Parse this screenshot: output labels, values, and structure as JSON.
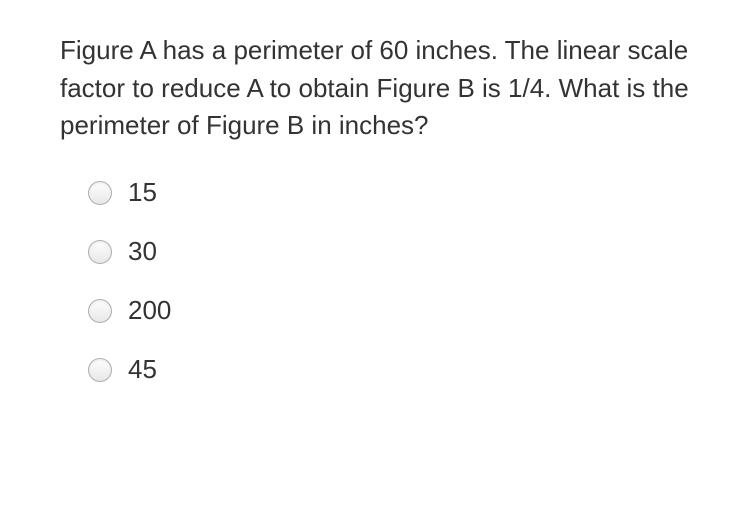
{
  "question_text": "Figure A has a perimeter of 60 inches. The linear scale factor to reduce A to obtain Figure B is 1/4. What is the perimeter of Figure B in inches?",
  "options": [
    {
      "label": "15"
    },
    {
      "label": "30"
    },
    {
      "label": "200"
    },
    {
      "label": "45"
    }
  ],
  "colors": {
    "text": "#333333",
    "radio_border": "#b0b0b0",
    "background": "#ffffff"
  },
  "typography": {
    "font_family": "Arial, Helvetica, sans-serif",
    "question_fontsize": 26,
    "option_fontsize": 26
  }
}
